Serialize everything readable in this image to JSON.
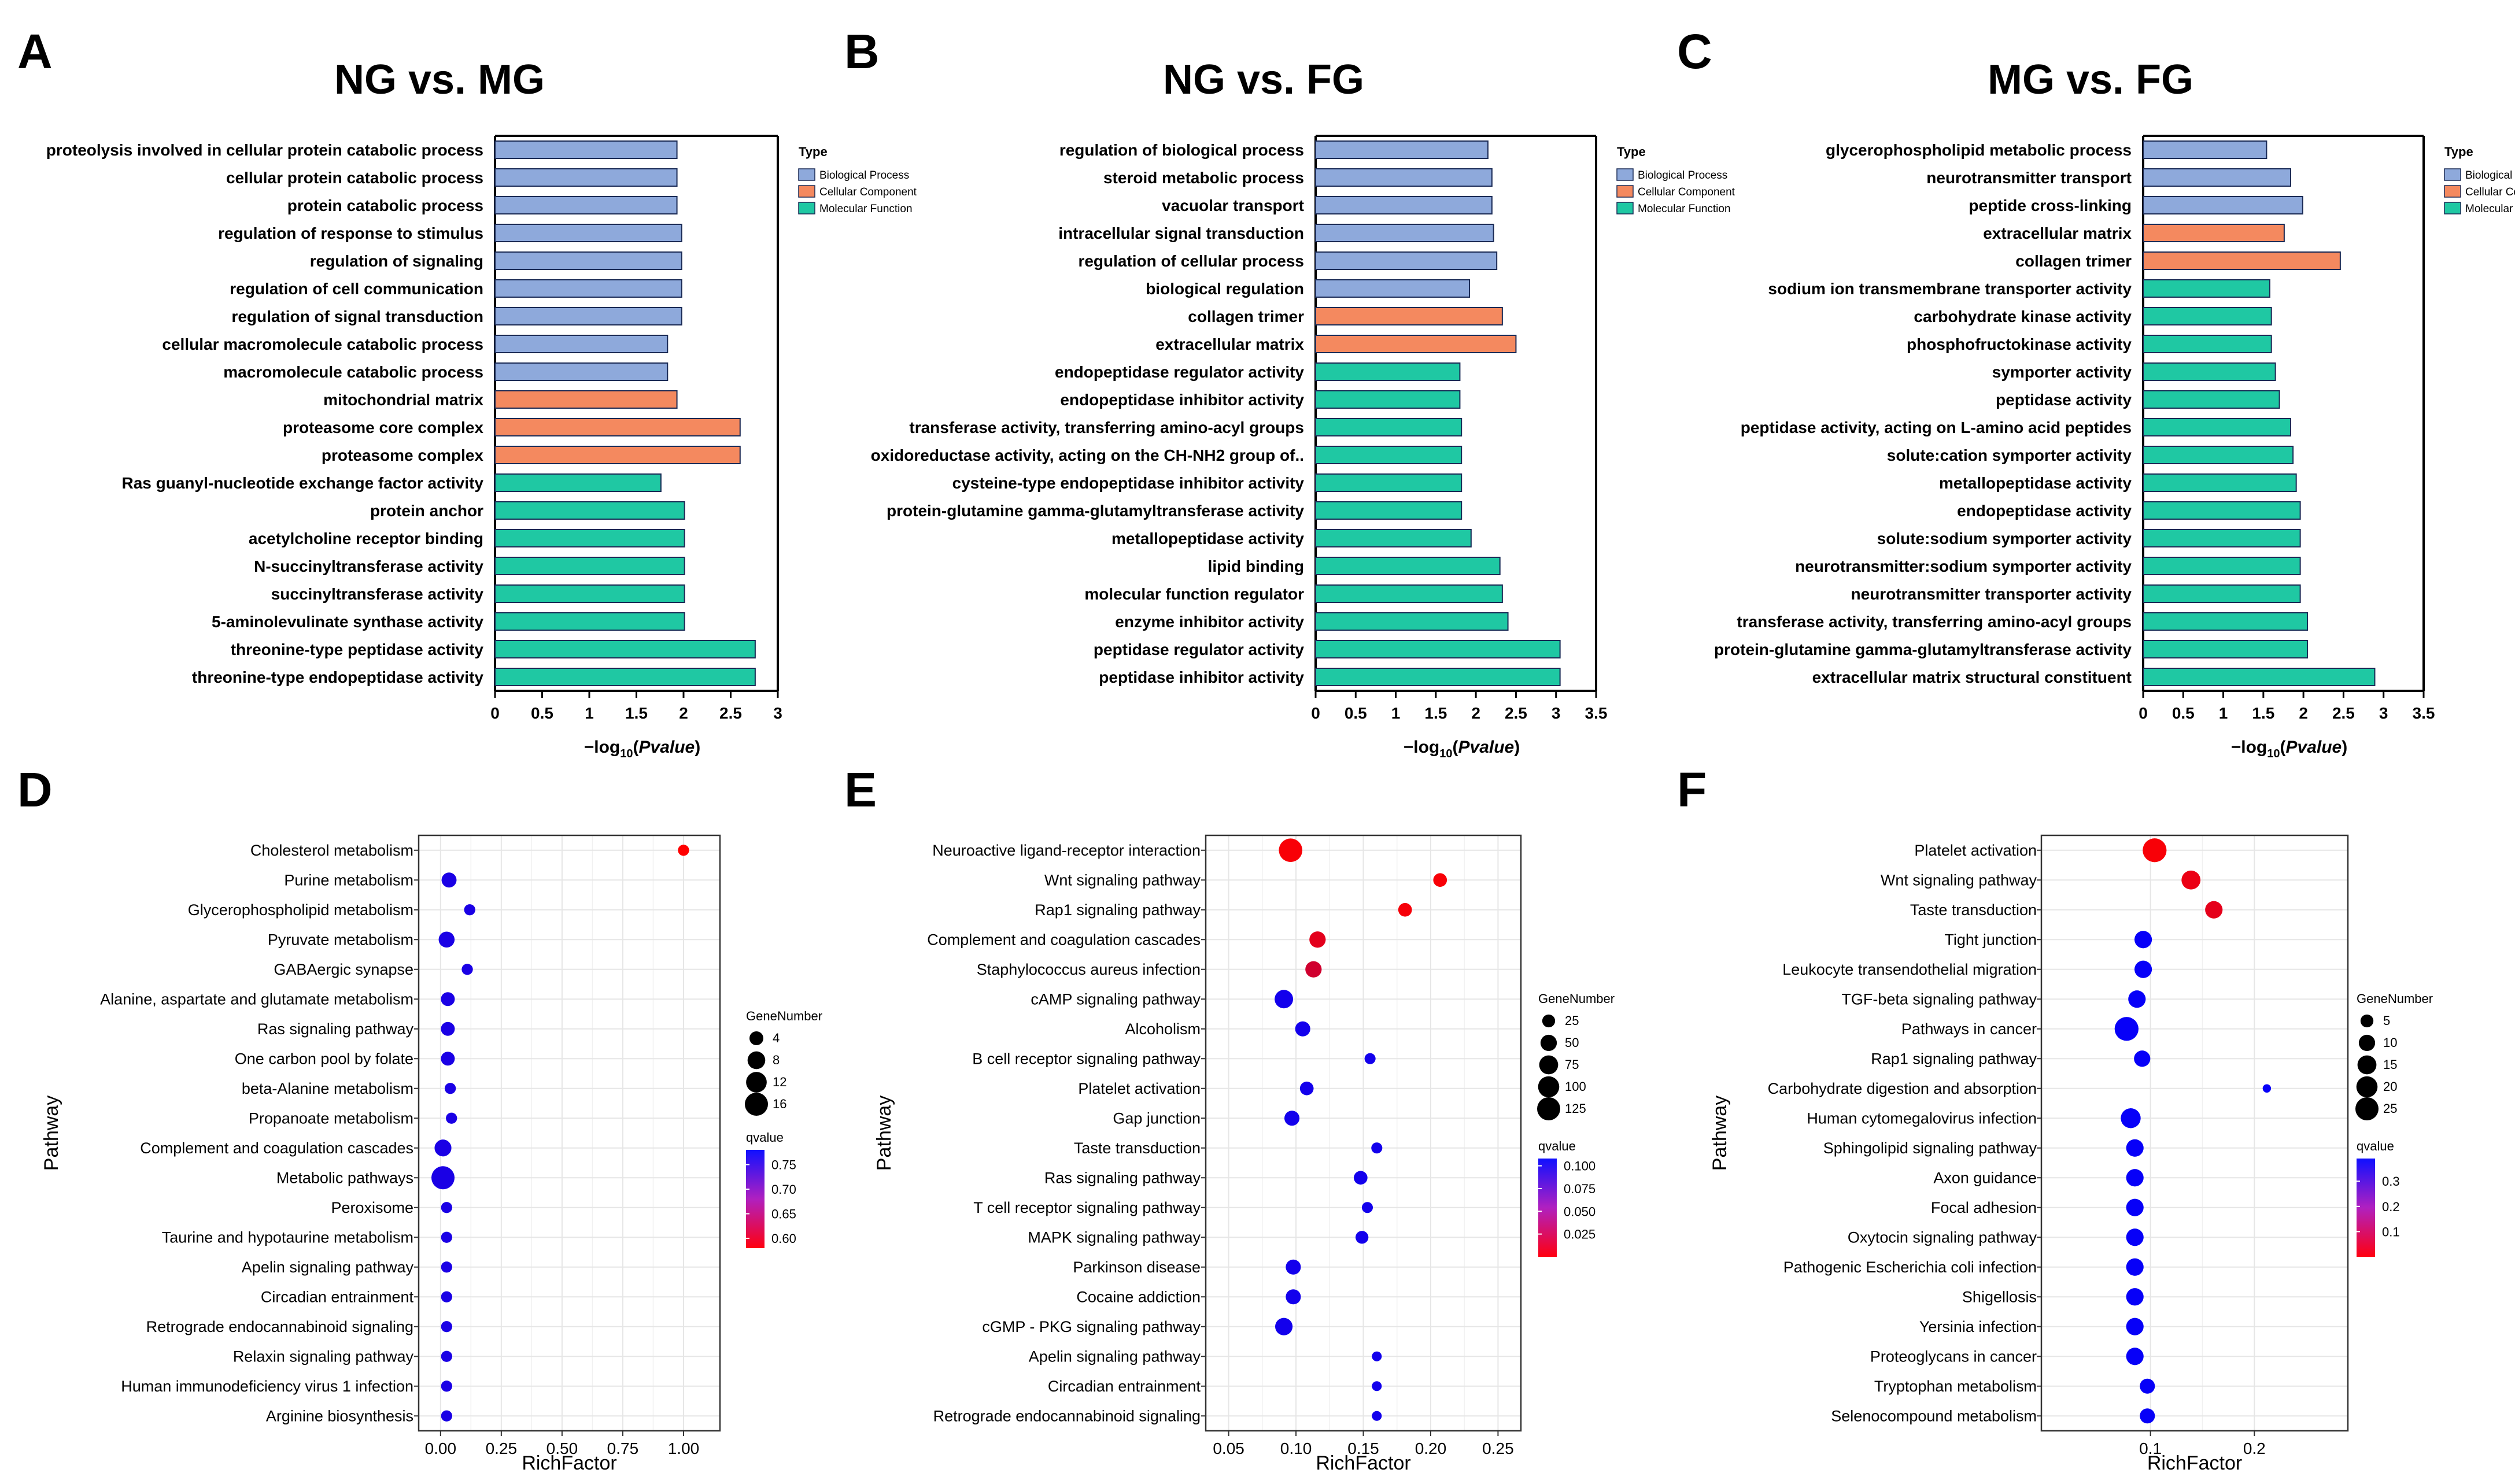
{
  "go_colors": {
    "Biological Process": "#8ea9db",
    "Cellular Component": "#f4895f",
    "Molecular Function": "#1fc8a3"
  },
  "legend_title": "Type",
  "legend_items": [
    "Biological Process",
    "Cellular Component",
    "Molecular Function"
  ],
  "bar_xlabel": "−log",
  "bar_xlabel_sub": "10",
  "bar_xlabel_tail": "(",
  "bar_xlabel_ital": "Pvalue",
  "bar_xlabel_end": ")",
  "dot_xlabel": "RichFactor",
  "dot_ylabel": "Pathway",
  "size_legend_title": "GeneNumber",
  "color_legend_title": "qvalue",
  "chart_data": [
    {
      "type": "bar",
      "panel": "A",
      "title": "NG vs. MG",
      "xlabel": "−log10(Pvalue)",
      "xlim": [
        0,
        3
      ],
      "xticks": [
        "0",
        "0.5",
        "1",
        "1.5",
        "2",
        "2.5",
        "3"
      ],
      "categories": [
        "proteolysis involved in cellular protein catabolic process",
        "cellular protein catabolic process",
        "protein catabolic process",
        "regulation of response to stimulus",
        "regulation of signaling",
        "regulation of cell communication",
        "regulation of signal transduction",
        "cellular macromolecule catabolic process",
        "macromolecule catabolic process",
        "mitochondrial matrix",
        "proteasome core complex",
        "proteasome complex",
        "Ras guanyl-nucleotide exchange factor activity",
        "protein anchor",
        "acetylcholine receptor binding",
        "N-succinyltransferase activity",
        "succinyltransferase activity",
        "5-aminolevulinate synthase activity",
        "threonine-type peptidase activity",
        "threonine-type endopeptidase activity"
      ],
      "values": [
        1.93,
        1.93,
        1.93,
        1.98,
        1.98,
        1.98,
        1.98,
        1.83,
        1.83,
        1.93,
        2.6,
        2.6,
        1.76,
        2.01,
        2.01,
        2.01,
        2.01,
        2.01,
        2.76,
        2.76
      ],
      "types": [
        "Biological Process",
        "Biological Process",
        "Biological Process",
        "Biological Process",
        "Biological Process",
        "Biological Process",
        "Biological Process",
        "Biological Process",
        "Biological Process",
        "Cellular Component",
        "Cellular Component",
        "Cellular Component",
        "Molecular Function",
        "Molecular Function",
        "Molecular Function",
        "Molecular Function",
        "Molecular Function",
        "Molecular Function",
        "Molecular Function",
        "Molecular Function"
      ]
    },
    {
      "type": "bar",
      "panel": "B",
      "title": "NG vs. FG",
      "xlabel": "−log10(Pvalue)",
      "xlim": [
        0,
        3.5
      ],
      "xticks": [
        "0",
        "0.5",
        "1",
        "1.5",
        "2",
        "2.5",
        "3",
        "3.5"
      ],
      "categories": [
        "regulation of biological process",
        "steroid metabolic process",
        "vacuolar transport",
        "intracellular signal transduction",
        "regulation of cellular process",
        "biological regulation",
        "collagen trimer",
        "extracellular matrix",
        "endopeptidase regulator activity",
        "endopeptidase inhibitor activity",
        "transferase activity, transferring amino-acyl groups",
        "oxidoreductase activity, acting on the CH-NH2 group of..",
        "cysteine-type endopeptidase inhibitor activity",
        "protein-glutamine gamma-glutamyltransferase activity",
        "metallopeptidase activity",
        "lipid binding",
        "molecular function regulator",
        "enzyme inhibitor activity",
        "peptidase regulator activity",
        "peptidase inhibitor activity"
      ],
      "values": [
        2.15,
        2.2,
        2.2,
        2.22,
        2.26,
        1.92,
        2.33,
        2.5,
        1.8,
        1.8,
        1.82,
        1.82,
        1.82,
        1.82,
        1.94,
        2.3,
        2.33,
        2.4,
        3.05,
        3.05
      ],
      "types": [
        "Biological Process",
        "Biological Process",
        "Biological Process",
        "Biological Process",
        "Biological Process",
        "Biological Process",
        "Cellular Component",
        "Cellular Component",
        "Molecular Function",
        "Molecular Function",
        "Molecular Function",
        "Molecular Function",
        "Molecular Function",
        "Molecular Function",
        "Molecular Function",
        "Molecular Function",
        "Molecular Function",
        "Molecular Function",
        "Molecular Function",
        "Molecular Function"
      ]
    },
    {
      "type": "bar",
      "panel": "C",
      "title": "MG vs. FG",
      "xlabel": "−log10(Pvalue)",
      "xlim": [
        0,
        3.5
      ],
      "xticks": [
        "0",
        "0.5",
        "1",
        "1.5",
        "2",
        "2.5",
        "3",
        "3.5"
      ],
      "categories": [
        "glycerophospholipid metabolic process",
        "neurotransmitter transport",
        "peptide cross-linking",
        "extracellular matrix",
        "collagen trimer",
        "sodium ion transmembrane transporter activity",
        "carbohydrate kinase activity",
        "phosphofructokinase activity",
        "symporter activity",
        "peptidase activity",
        "peptidase activity, acting on L-amino acid peptides",
        "solute:cation symporter activity",
        "metallopeptidase activity",
        "endopeptidase activity",
        "solute:sodium symporter activity",
        "neurotransmitter:sodium symporter activity",
        "neurotransmitter transporter activity",
        "transferase activity, transferring amino-acyl groups",
        "protein-glutamine gamma-glutamyltransferase activity",
        "extracellular matrix structural constituent"
      ],
      "values": [
        1.54,
        1.84,
        1.99,
        1.76,
        2.46,
        1.58,
        1.6,
        1.6,
        1.65,
        1.7,
        1.84,
        1.87,
        1.91,
        1.96,
        1.96,
        1.96,
        1.96,
        2.05,
        2.05,
        2.89
      ],
      "types": [
        "Biological Process",
        "Biological Process",
        "Biological Process",
        "Cellular Component",
        "Cellular Component",
        "Molecular Function",
        "Molecular Function",
        "Molecular Function",
        "Molecular Function",
        "Molecular Function",
        "Molecular Function",
        "Molecular Function",
        "Molecular Function",
        "Molecular Function",
        "Molecular Function",
        "Molecular Function",
        "Molecular Function",
        "Molecular Function",
        "Molecular Function",
        "Molecular Function"
      ]
    },
    {
      "type": "scatter",
      "panel": "D",
      "xlabel": "RichFactor",
      "ylabel": "Pathway",
      "xlim": [
        -0.09,
        1.15
      ],
      "xticks": [
        0,
        0.25,
        0.5,
        0.75,
        1
      ],
      "xtick_labels": [
        "0.00",
        "0.25",
        "0.50",
        "0.75",
        "1.00"
      ],
      "grid": true,
      "categories": [
        "Cholesterol metabolism",
        "Purine metabolism",
        "Glycerophospholipid metabolism",
        "Pyruvate metabolism",
        "GABAergic synapse",
        "Alanine, aspartate and glutamate metabolism",
        "Ras signaling pathway",
        "One carbon pool by folate",
        "beta-Alanine metabolism",
        "Propanoate metabolism",
        "Complement and coagulation cascades",
        "Metabolic pathways",
        "Peroxisome",
        "Taurine and hypotaurine metabolism",
        "Apelin signaling pathway",
        "Circadian entrainment",
        "Retrograde endocannabinoid signaling",
        "Relaxin signaling pathway",
        "Human immunodeficiency virus 1 infection",
        "Arginine biosynthesis"
      ],
      "x": [
        1.0,
        0.035,
        0.12,
        0.025,
        0.11,
        0.03,
        0.03,
        0.03,
        0.04,
        0.045,
        0.01,
        0.01,
        0.025,
        0.025,
        0.025,
        0.025,
        0.025,
        0.025,
        0.025,
        0.025
      ],
      "gene_number": [
        2,
        5,
        2,
        6,
        2,
        4,
        4,
        4,
        2,
        2,
        7,
        16,
        2,
        2,
        2,
        2,
        2,
        2,
        2,
        2
      ],
      "qvalue": [
        0.58,
        0.76,
        0.76,
        0.76,
        0.76,
        0.76,
        0.76,
        0.76,
        0.76,
        0.76,
        0.76,
        0.76,
        0.76,
        0.76,
        0.76,
        0.76,
        0.76,
        0.76,
        0.76,
        0.76
      ],
      "size_legend": [
        "4",
        "8",
        "12",
        "16"
      ],
      "size_legend_values": [
        4,
        8,
        12,
        16
      ],
      "color_legend": [
        "0.75",
        "0.70",
        "0.65",
        "0.60"
      ],
      "qrange": [
        0.58,
        0.78
      ]
    },
    {
      "type": "scatter",
      "panel": "E",
      "xlabel": "RichFactor",
      "ylabel": "Pathway",
      "xlim": [
        0.033,
        0.267
      ],
      "xticks": [
        0.05,
        0.1,
        0.15,
        0.2,
        0.25
      ],
      "xtick_labels": [
        "0.05",
        "0.10",
        "0.15",
        "0.20",
        "0.25"
      ],
      "grid": true,
      "categories": [
        "Neuroactive ligand-receptor interaction",
        "Wnt signaling pathway",
        "Rap1 signaling pathway",
        "Complement and coagulation cascades",
        "Staphylococcus aureus infection",
        "cAMP signaling pathway",
        "Alcoholism",
        "B cell receptor signaling pathway",
        "Platelet activation",
        "Gap junction",
        "Taste transduction",
        "Ras signaling pathway",
        "T cell receptor signaling pathway",
        "MAPK signaling pathway",
        "Parkinson disease",
        "Cocaine addiction",
        "cGMP - PKG signaling pathway",
        "Apelin signaling pathway",
        "Circadian entrainment",
        "Retrograde endocannabinoid signaling"
      ],
      "x": [
        0.096,
        0.207,
        0.181,
        0.116,
        0.113,
        0.091,
        0.105,
        0.155,
        0.108,
        0.097,
        0.16,
        0.148,
        0.153,
        0.149,
        0.098,
        0.098,
        0.091,
        0.16,
        0.16,
        0.16
      ],
      "gene_number": [
        130,
        30,
        30,
        50,
        50,
        70,
        40,
        15,
        30,
        40,
        15,
        30,
        15,
        25,
        40,
        40,
        60,
        10,
        10,
        10
      ],
      "qvalue": [
        0.003,
        0.003,
        0.004,
        0.012,
        0.02,
        0.1,
        0.1,
        0.1,
        0.1,
        0.1,
        0.1,
        0.1,
        0.1,
        0.1,
        0.1,
        0.1,
        0.1,
        0.1,
        0.1,
        0.1
      ],
      "size_legend": [
        "25",
        "50",
        "75",
        "100",
        "125"
      ],
      "size_legend_values": [
        25,
        50,
        75,
        100,
        125
      ],
      "color_legend": [
        "0.100",
        "0.075",
        "0.050",
        "0.025"
      ],
      "qrange": [
        0.0,
        0.108
      ]
    },
    {
      "type": "scatter",
      "panel": "F",
      "xlabel": "RichFactor",
      "ylabel": "Pathway",
      "xlim": [
        -0.005,
        0.29
      ],
      "xticks": [
        0.1,
        0.2
      ],
      "xtick_labels": [
        "0.1",
        "0.2"
      ],
      "grid": true,
      "categories": [
        "Platelet activation",
        "Wnt signaling pathway",
        "Taste transduction",
        "Tight junction",
        "Leukocyte transendothelial migration",
        "TGF-beta signaling pathway",
        "Pathways in cancer",
        "Rap1 signaling pathway",
        "Carbohydrate digestion and absorption",
        "Human cytomegalovirus infection",
        "Sphingolipid signaling pathway",
        "Axon guidance",
        "Focal adhesion",
        "Oxytocin signaling pathway",
        "Pathogenic Escherichia coli infection",
        "Shigellosis",
        "Yersinia infection",
        "Proteoglycans in cancer",
        "Tryptophan metabolism",
        "Selenocompound metabolism"
      ],
      "x": [
        0.104,
        0.139,
        0.161,
        0.093,
        0.093,
        0.087,
        0.077,
        0.092,
        0.212,
        0.081,
        0.085,
        0.085,
        0.085,
        0.085,
        0.085,
        0.085,
        0.085,
        0.085,
        0.097,
        0.097
      ],
      "gene_number": [
        27,
        15,
        12,
        12,
        12,
        12,
        27,
        10,
        1,
        17,
        12,
        12,
        12,
        12,
        12,
        12,
        12,
        12,
        8,
        8
      ],
      "qvalue": [
        0.01,
        0.03,
        0.04,
        0.38,
        0.38,
        0.38,
        0.38,
        0.38,
        0.38,
        0.38,
        0.38,
        0.38,
        0.38,
        0.38,
        0.38,
        0.38,
        0.38,
        0.38,
        0.38,
        0.38
      ],
      "size_legend": [
        "5",
        "10",
        "15",
        "20",
        "25"
      ],
      "size_legend_values": [
        5,
        10,
        15,
        20,
        25
      ],
      "color_legend": [
        "0.3",
        "0.2",
        "0.1"
      ],
      "qrange": [
        0.0,
        0.39
      ]
    }
  ]
}
